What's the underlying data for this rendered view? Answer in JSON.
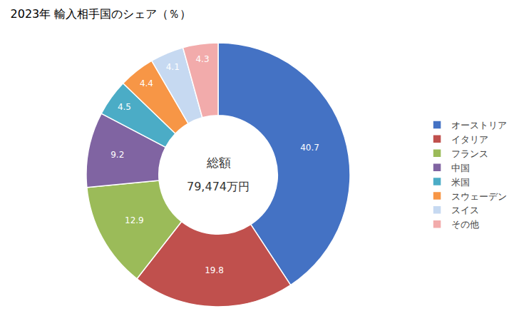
{
  "chart_data": {
    "type": "pie",
    "title": "2023年 輸入相手国のシェア（％）",
    "categories": [
      "オーストリア",
      "イタリア",
      "フランス",
      "中国",
      "米国",
      "スウェーデン",
      "スイス",
      "その他"
    ],
    "values": [
      40.7,
      19.8,
      12.9,
      9.2,
      4.5,
      4.4,
      4.1,
      4.3
    ],
    "colors": [
      "#4472C4",
      "#C0504D",
      "#9BBB59",
      "#8064A2",
      "#4BACC6",
      "#F79646",
      "#C6D9F1",
      "#F2ABAB"
    ],
    "data_labels": true,
    "annotations": [
      "総額",
      "79,474万円"
    ],
    "legend": "right"
  }
}
